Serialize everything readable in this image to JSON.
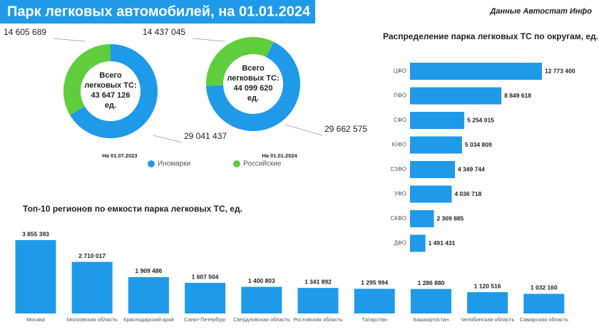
{
  "header": {
    "title": "Парк легковых автомобилей, на 01.01.2024 г.",
    "source": "Данные Автостат Инфо"
  },
  "legend": [
    {
      "name": "Иномарки",
      "color": "#1e9ae8"
    },
    {
      "name": "Российские",
      "color": "#5fcd3c"
    }
  ],
  "chart_data": [
    {
      "type": "pie",
      "donut": true,
      "caption": "На 01.07.2023",
      "center_label": [
        "Всего",
        "легковых ТС:",
        "43 647 126",
        "ед."
      ],
      "values": [
        29041437,
        14605689
      ],
      "value_labels": [
        "29 041 437",
        "14 605 689"
      ]
    },
    {
      "type": "pie",
      "donut": true,
      "caption": "На 01.01.2024",
      "center_label": [
        "Всего",
        "легковых ТС:",
        "44 099 620",
        "ед."
      ],
      "values": [
        29662575,
        14437045
      ],
      "value_labels": [
        "29 662 575",
        "14 437 045"
      ]
    },
    {
      "type": "hbar",
      "title": "Распределение парка легковых ТС по округам, ед.",
      "color": "#1e9ae8",
      "categories": [
        "ЦФО",
        "ПФО",
        "СФО",
        "ЮФО",
        "СЗФО",
        "УФО",
        "СКФО",
        "ДФО"
      ],
      "values": [
        12773400,
        8849618,
        5254015,
        5034809,
        4349744,
        4036718,
        2309885,
        1491431
      ],
      "value_labels": [
        "12 773 400",
        "8 849 618",
        "5 254 015",
        "5 034 809",
        "4 349 744",
        "4 036 718",
        "2 309 885",
        "1 491 431"
      ]
    },
    {
      "type": "bar",
      "title": "Топ-10 регионов по емкости парка легковых ТС, ед.",
      "color": "#1e9ae8",
      "categories": [
        "Москва",
        "Московская область",
        "Краснодарский край",
        "Санкт-Петербург",
        "Свердловская область",
        "Ростовская область",
        "Татарстан",
        "Башкортостан",
        "Челябинская область",
        "Самарская область"
      ],
      "values": [
        3855393,
        2710017,
        1909486,
        1607504,
        1400803,
        1341892,
        1295994,
        1286880,
        1120516,
        1032160
      ],
      "value_labels": [
        "3 855 393",
        "2 710 017",
        "1 909 486",
        "1 607 504",
        "1 400 803",
        "1 341 892",
        "1 295 994",
        "1 286 880",
        "1 120 516",
        "1 032 160"
      ]
    }
  ]
}
